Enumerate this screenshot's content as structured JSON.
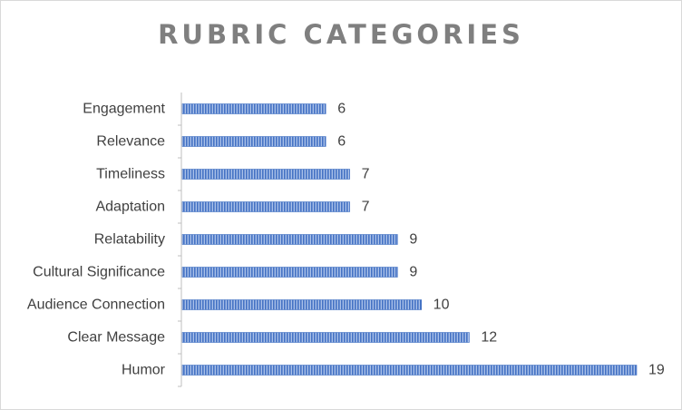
{
  "chart_data": {
    "type": "bar",
    "orientation": "horizontal",
    "title": "RUBRIC CATEGORIES",
    "categories": [
      "Humor",
      "Clear Message",
      "Audience Connection",
      "Cultural Significance",
      "Relatability",
      "Adaptation",
      "Timeliness",
      "Relevance",
      "Engagement"
    ],
    "values": [
      19,
      12,
      10,
      9,
      9,
      7,
      7,
      6,
      6
    ],
    "xlim": [
      0,
      19
    ],
    "data_labels": true,
    "grid": false,
    "legend": "none",
    "bar_color": "#4472c4",
    "title_color": "#7f7f7f",
    "label_color": "#404040"
  }
}
